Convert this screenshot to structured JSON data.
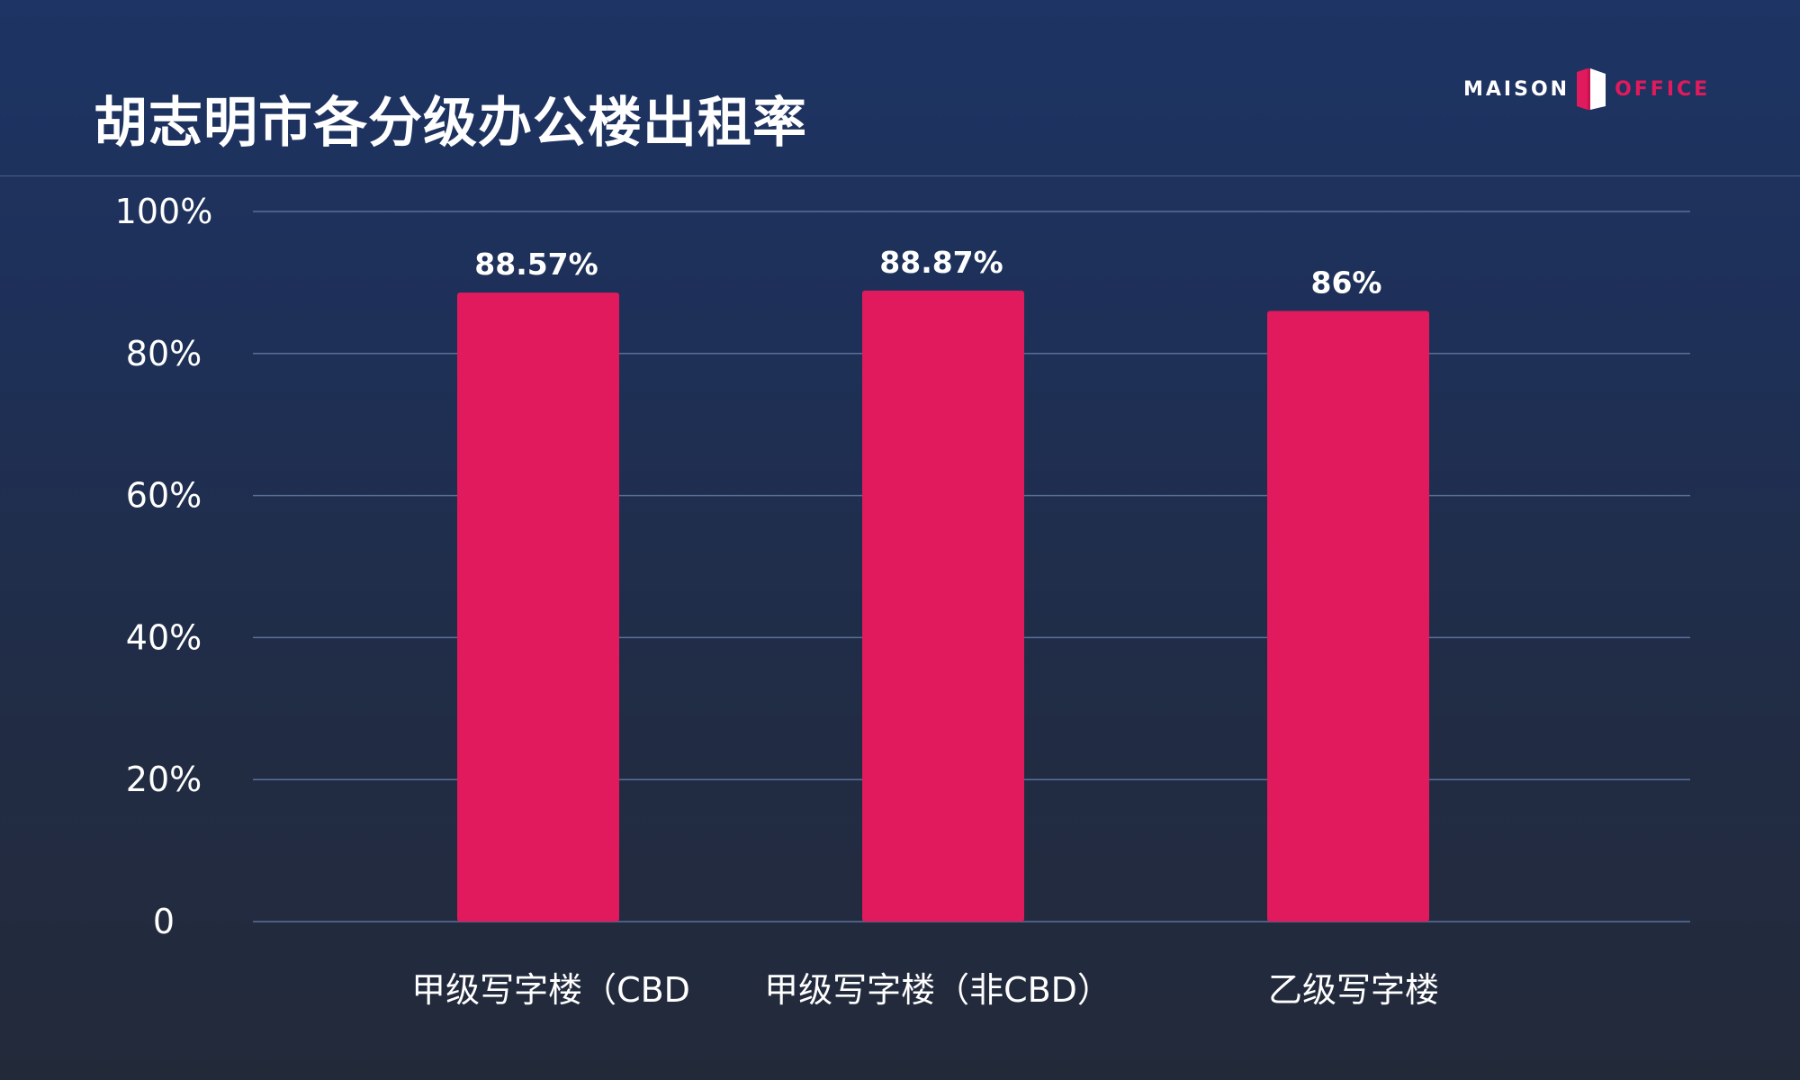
{
  "header": {
    "title": "胡志明市各分级办公楼出租率",
    "logo": {
      "left_text": "MAISON",
      "right_text": "OFFICE",
      "mark_icon": "maison-office-logo-mark"
    }
  },
  "colors": {
    "bar": "#e01a5c",
    "gridline": "#5a6f99",
    "text": "#ffffff",
    "background_top": "#1d3464",
    "background_bottom": "#222a3a"
  },
  "chart_data": {
    "type": "bar",
    "categories": [
      "甲级写字楼（CBD",
      "甲级写字楼（非CBD）",
      "乙级写字楼"
    ],
    "values": [
      88.57,
      88.87,
      86
    ],
    "data_labels": [
      "88.57%",
      "88.87%",
      "86%"
    ],
    "ylim": [
      0,
      100
    ],
    "yticks": [
      0,
      20,
      40,
      60,
      80,
      100
    ],
    "ytick_labels": [
      "0",
      "20%",
      "40%",
      "60%",
      "80%",
      "100%"
    ],
    "grid": true,
    "legend": "none"
  }
}
